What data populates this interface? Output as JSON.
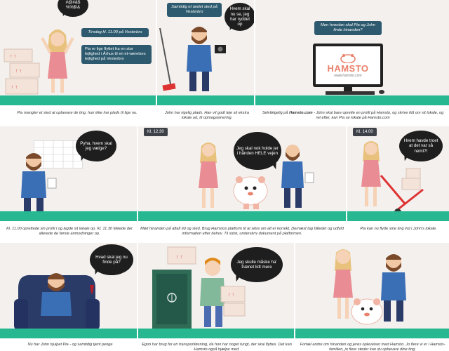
{
  "row1": {
    "p1": {
      "bubble": "#@#&$ %%$!&",
      "tag_time": "Tirsdag kl. 11.00 på Vesterbro",
      "tag_text": "Pia er lige flyttet fra en stor lejlighed i Århus til en et-værelses lejlighed på Vesterbro",
      "caption": "Pia mangler et sted at opbevare de ting, hun ikke har plads til lige nu."
    },
    "p2": {
      "tag": "Samtidig et andet sted på Vesterbro",
      "bubble": "Hvem skal nu se, jeg har ryddet op",
      "caption": "John har rigelig plads. Han vil godt leje sit ekstra lokale ud, til opmagasinering."
    },
    "p3": {
      "tag": "Men hvordan skal Pia og John finde hinanden?",
      "screen_brand": "HAMSTO",
      "screen_url": "www.hamsto.com",
      "caption_pre": "Selvfølgelig på ",
      "caption_bold": "Hamsto.com",
      "caption_post": " - John skal bare oprette en profil på Hamsto, og skrive lidt om sit lokale, og ret efter, kan Pia se lokale på Hamsto.com"
    }
  },
  "row2": {
    "p4": {
      "bubble": "Pyha, hvem skal jeg vælge?",
      "caption": "Kl. 11.00 oprettede sin profil i og lagde sit lokale op. Kl. 11.30 tikkede der allerede de første anmodninger op."
    },
    "p5": {
      "time": "Kl. 12.30",
      "bubble": "Jeg skal nok holde jer i hånden HELE vejen",
      "caption": "Mød hinanden på aftalt tid og sted. Brug Hamstos platform til at sikre om alt er korrekt. Dernæst tag billeder og udfyld information efter behov. Til sidst, underskriv dokument på platformen."
    },
    "p6": {
      "time": "Kl. 14.00",
      "bubble": "Hvem havde troet at det var så nemt?!",
      "caption": "Pia kan nu flytte sine ting ind i John's lokale."
    }
  },
  "row3": {
    "p7": {
      "bubble": "Hvad skal jeg nu finde på?",
      "caption": "Nu har John hjulpet Pia - og samtidig tjent penge"
    },
    "p8": {
      "bubble": "Jeg skulle måske ha' trænet lidt mere",
      "caption": "Egon har brug for en transportløsning, da hon har noget tungt, der skal flyttes. Det kan Hamsto også hjælpe med."
    },
    "p9": {
      "caption": "Fortæl andre om hinanden og jeres oplevelser med Hamsto. Jo flere vi er i Hamsto-familien, jo flere steder kan du opbevare dine ting."
    }
  },
  "colors": {
    "floor": "#27b892",
    "panel_bg": "#f4f0ee",
    "bubble": "#1e1e1e",
    "tag": "#2d5a6e",
    "hamsto": "#e9826c"
  }
}
